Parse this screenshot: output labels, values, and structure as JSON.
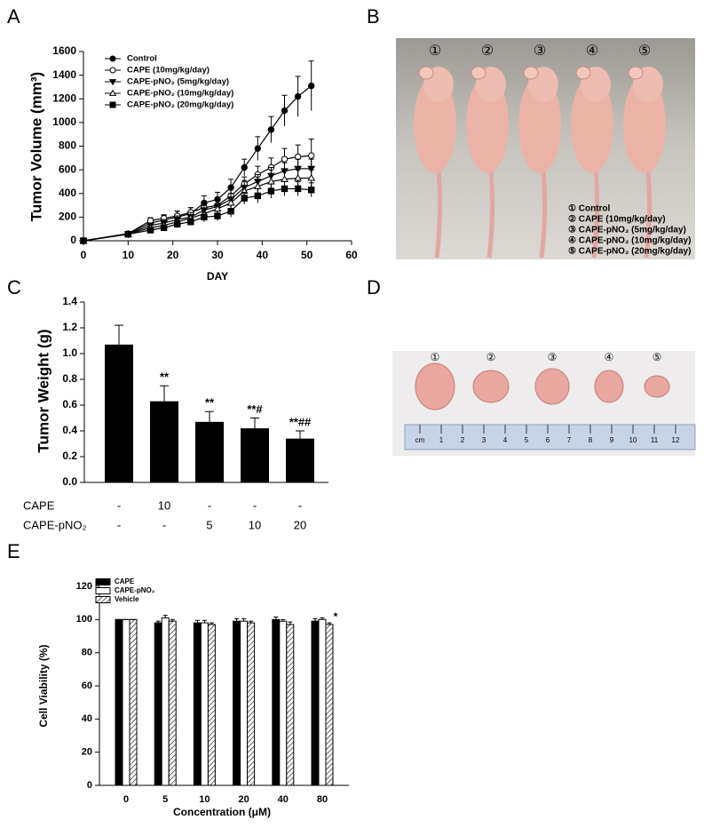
{
  "chart_data": [
    {
      "type": "line",
      "panel_label": "A",
      "ylabel": "Tumor Volume (mm³)",
      "xlabel": "DAY",
      "x": [
        0,
        10,
        15,
        18,
        21,
        24,
        27,
        30,
        33,
        36,
        39,
        42,
        45,
        48,
        51
      ],
      "xlim": [
        0,
        60
      ],
      "xticks": [
        0,
        10,
        20,
        30,
        40,
        50,
        60
      ],
      "ylim": [
        0,
        1600
      ],
      "yticks": [
        0,
        200,
        400,
        600,
        800,
        1000,
        1200,
        1400,
        1600
      ],
      "series": [
        {
          "name": "Control",
          "color": "#000000",
          "marker": "circle",
          "filled": true,
          "values": [
            0,
            60,
            150,
            175,
            200,
            230,
            320,
            350,
            450,
            620,
            780,
            940,
            1100,
            1220,
            1310
          ],
          "errors": [
            0,
            10,
            30,
            40,
            50,
            50,
            60,
            60,
            70,
            70,
            100,
            110,
            130,
            170,
            210
          ]
        },
        {
          "name": "CAPE (10mg/kg/day)",
          "color": "#000000",
          "marker": "circle",
          "filled": false,
          "values": [
            0,
            60,
            170,
            190,
            210,
            240,
            280,
            300,
            380,
            480,
            560,
            620,
            690,
            710,
            720
          ],
          "errors": [
            0,
            10,
            25,
            30,
            40,
            40,
            50,
            50,
            60,
            60,
            70,
            80,
            90,
            100,
            140
          ]
        },
        {
          "name": "CAPE-pNO₂ (5mg/kg/day)",
          "color": "#000000",
          "marker": "triangle-down",
          "filled": true,
          "values": [
            0,
            55,
            130,
            150,
            180,
            200,
            260,
            290,
            350,
            450,
            500,
            550,
            590,
            610,
            610
          ],
          "errors": [
            0,
            10,
            20,
            30,
            30,
            40,
            40,
            50,
            50,
            60,
            60,
            70,
            70,
            80,
            80
          ]
        },
        {
          "name": "CAPE-pNO₂ (10mg/kg/day)",
          "color": "#000000",
          "marker": "triangle-up",
          "filled": false,
          "values": [
            0,
            55,
            110,
            130,
            160,
            190,
            230,
            270,
            320,
            420,
            460,
            500,
            520,
            530,
            530
          ],
          "errors": [
            0,
            10,
            20,
            25,
            30,
            30,
            40,
            40,
            50,
            50,
            60,
            60,
            70,
            70,
            70
          ]
        },
        {
          "name": "CAPE-pNO₂ (20mg/kg/day)",
          "color": "#000000",
          "marker": "square",
          "filled": true,
          "values": [
            0,
            55,
            90,
            110,
            140,
            160,
            200,
            210,
            250,
            360,
            380,
            420,
            440,
            440,
            430
          ],
          "errors": [
            0,
            10,
            20,
            25,
            30,
            30,
            40,
            40,
            50,
            50,
            60,
            60,
            60,
            60,
            60
          ]
        }
      ]
    },
    {
      "type": "bar",
      "panel_label": "C",
      "ylabel": "Tumor Weight (g)",
      "color": "#000000",
      "rows": [
        {
          "name": "CAPE",
          "labels": [
            "-",
            "10",
            "-",
            "-",
            "-"
          ]
        },
        {
          "name": "CAPE-pNO₂",
          "labels": [
            "-",
            "-",
            "5",
            "10",
            "20"
          ]
        }
      ],
      "values": [
        1.07,
        0.63,
        0.47,
        0.42,
        0.34
      ],
      "errors": [
        0.15,
        0.12,
        0.08,
        0.08,
        0.06
      ],
      "annotations": [
        null,
        "**",
        "**",
        "**#",
        "**##"
      ],
      "ylim": [
        0,
        1.4
      ],
      "yticks": [
        {
          "value": 0,
          "label": "0.0"
        },
        0.2,
        0.4,
        0.6,
        0.8,
        {
          "value": 1,
          "label": "1.0"
        },
        1.2,
        1.4
      ]
    },
    {
      "type": "grouped_bar",
      "panel_label": "E",
      "ylabel": "Cell Viability (%)",
      "xlabel": "Concentration (μM)",
      "categories": [
        "0",
        "5",
        "10",
        "20",
        "40",
        "80"
      ],
      "ylim": [
        0,
        120
      ],
      "yticks": [
        0,
        20,
        40,
        60,
        80,
        100,
        120
      ],
      "series": [
        {
          "name": "CAPE",
          "color": "#000000",
          "hatch": false,
          "values": [
            100,
            98,
            98,
            99,
            100,
            99
          ],
          "errors": [
            0,
            1,
            1.5,
            1.5,
            1.5,
            1.5
          ]
        },
        {
          "name": "CAPE-pNO₂",
          "color": "#ffffff",
          "hatch": false,
          "values": [
            100,
            101,
            98,
            99,
            99,
            100
          ],
          "errors": [
            0,
            1.5,
            1.5,
            1.5,
            1,
            1
          ]
        },
        {
          "name": "Vehicle",
          "color": "#ffffff",
          "hatch": true,
          "values": [
            100,
            99,
            97,
            98,
            97,
            97
          ],
          "errors": [
            0,
            1,
            1,
            1,
            1.5,
            1
          ],
          "annotations": [
            null,
            null,
            null,
            null,
            null,
            "*"
          ]
        }
      ]
    }
  ],
  "panel_b": {
    "label": "B",
    "mouse_numbers": [
      "①",
      "②",
      "③",
      "④",
      "⑤"
    ],
    "legend": [
      "① Control",
      "② CAPE (10mg/kg/day)",
      "③ CAPE-pNO₂ (5mg/kg/day)",
      "④ CAPE-pNO₂ (10mg/kg/day)",
      "⑤ CAPE-pNO₂ (20mg/kg/day)"
    ]
  },
  "panel_d": {
    "label": "D",
    "tumor_numbers": [
      "①",
      "②",
      "③",
      "④",
      "⑤"
    ],
    "ruler_labels": [
      "cm",
      "1",
      "2",
      "3",
      "4",
      "5",
      "6",
      "7",
      "8",
      "9",
      "10",
      "11",
      "12"
    ]
  }
}
